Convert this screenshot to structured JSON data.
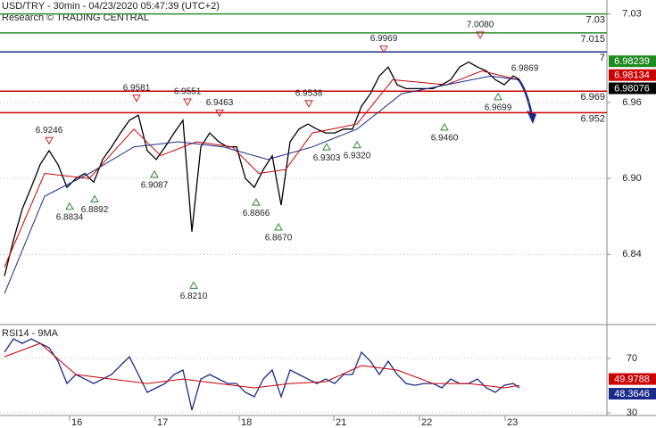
{
  "chart_data": [
    {
      "type": "line",
      "title": "USD/TRY - 30min - 04/23/2020 05:47:39 (UTC+2)",
      "subtitle": "Research © TRADING CENTRAL",
      "xlim": [
        0,
        340
      ],
      "ylim": [
        6.786,
        7.041
      ],
      "yticks": [
        6.84,
        {
          "value": 6.9,
          "label": "6.90"
        },
        6.96,
        7.03
      ],
      "grid": true,
      "series": [
        {
          "color": "#000000",
          "x": [
            2.5,
            7.5,
            12.5,
            17.5,
            22.5,
            27.5,
            32.5,
            37.5,
            42.5,
            47.5,
            52.5,
            57.5,
            62.5,
            67.5,
            72.5,
            77.5,
            82.5,
            87.5,
            92.5,
            97.5,
            102.5,
            107.5,
            112.5,
            117.5,
            122.5,
            127.5,
            132.5,
            137.5,
            142.5,
            147.5,
            152.5,
            157.5,
            162.5,
            167.5,
            172.5,
            177.5,
            182.5,
            187.5,
            192.5,
            197.5,
            202.5,
            207.5,
            212.5,
            217.5,
            222.5,
            227.5,
            232.5,
            237.5,
            242.5,
            247.5,
            252.5,
            257.5,
            262.5,
            267.5,
            272.5,
            277.5,
            282.5,
            287.5,
            291
          ],
          "values": [
            6.823,
            6.851,
            6.876,
            6.893,
            6.911,
            6.922,
            6.911,
            6.893,
            6.9,
            6.904,
            6.897,
            6.915,
            6.925,
            6.936,
            6.946,
            6.95,
            6.922,
            6.915,
            6.925,
            6.936,
            6.946,
            6.858,
            6.925,
            6.936,
            6.929,
            6.925,
            6.925,
            6.9,
            6.893,
            6.907,
            6.918,
            6.879,
            6.929,
            6.939,
            6.943,
            6.939,
            6.936,
            6.936,
            6.939,
            6.939,
            6.957,
            6.967,
            6.981,
            6.988,
            6.974,
            6.971,
            6.971,
            6.971,
            6.971,
            6.974,
            6.978,
            6.988,
            6.992,
            6.988,
            6.985,
            6.978,
            6.974,
            6.981,
            6.978
          ]
        },
        {
          "color": "#cc0000",
          "x": [
            2.5,
            25,
            50,
            75,
            90,
            110,
            130,
            145,
            160,
            175,
            200,
            220,
            250,
            270,
            290
          ],
          "values": [
            6.83,
            6.904,
            6.9,
            6.939,
            6.918,
            6.929,
            6.925,
            6.904,
            6.907,
            6.936,
            6.943,
            6.978,
            6.974,
            6.985,
            6.978
          ]
        },
        {
          "color": "#1a2a8a",
          "x": [
            2.5,
            25,
            50,
            75,
            100,
            125,
            150,
            175,
            200,
            225,
            250,
            275,
            290
          ],
          "values": [
            6.809,
            6.886,
            6.904,
            6.925,
            6.929,
            6.925,
            6.915,
            6.925,
            6.939,
            6.967,
            6.974,
            6.981,
            6.978
          ]
        }
      ],
      "levels": [
        {
          "value": 7.03,
          "color": "#2e8b2e"
        },
        {
          "value": 7.015,
          "color": "#2e8b2e"
        },
        {
          "value": 7,
          "color": "#1a2a8a"
        },
        {
          "value": 6.969,
          "color": "#cc0000"
        },
        {
          "value": 6.952,
          "color": "#cc0000"
        }
      ],
      "annotations": [
        {
          "x": 27.5,
          "value": 6.9246,
          "label": "6.9246",
          "marker": "high"
        },
        {
          "x": 39,
          "value": 6.8834,
          "label": "6.8834",
          "marker": "low"
        },
        {
          "x": 53,
          "value": 6.8892,
          "label": "6.8892",
          "marker": "low"
        },
        {
          "x": 76.5,
          "value": 6.9581,
          "label": "6.9581",
          "marker": "high"
        },
        {
          "x": 86.5,
          "value": 6.9087,
          "label": "6.9087",
          "marker": "low"
        },
        {
          "x": 105,
          "value": 6.9551,
          "label": "6.9551",
          "marker": "high"
        },
        {
          "x": 108.5,
          "value": 6.821,
          "label": "6.8210",
          "marker": "low"
        },
        {
          "x": 123,
          "value": 6.9463,
          "label": "6.9463",
          "marker": "high"
        },
        {
          "x": 143.5,
          "value": 6.8866,
          "label": "6.8866",
          "marker": "low"
        },
        {
          "x": 156,
          "value": 6.867,
          "label": "6.8670",
          "marker": "low"
        },
        {
          "x": 173,
          "value": 6.9538,
          "label": "6.9538",
          "marker": "high"
        },
        {
          "x": 183,
          "value": 6.9303,
          "label": "6.9303",
          "marker": "low"
        },
        {
          "x": 200,
          "value": 6.932,
          "label": "6.9320",
          "marker": "low"
        },
        {
          "x": 215,
          "value": 6.9969,
          "label": "6.9969",
          "marker": "high"
        },
        {
          "x": 249,
          "value": 6.946,
          "label": "6.9460",
          "marker": "low"
        },
        {
          "x": 269,
          "value": 7.008,
          "label": "7.0080",
          "marker": "high"
        },
        {
          "x": 279,
          "value": 6.9699,
          "label": "6.9699",
          "marker": "low"
        },
        {
          "x": 294,
          "value": 6.9869,
          "label": "6.9869",
          "marker": "text"
        }
      ],
      "price_tags": [
        {
          "value": 6.98239,
          "color": "#1f8a1f"
        },
        {
          "value": 6.98134,
          "color": "#cc0000"
        },
        {
          "value": 6.98076,
          "color": "#000000"
        }
      ]
    },
    {
      "type": "line",
      "title": "RSI14 - 9MA",
      "xlim": [
        0,
        340
      ],
      "ylim": [
        28.7,
        93
      ],
      "yticks": [
        30,
        70
      ],
      "grid": true,
      "xticks": [
        {
          "value": 39,
          "label": "16"
        },
        {
          "value": 87,
          "label": "17"
        },
        {
          "value": 134,
          "label": "18"
        },
        {
          "value": 187,
          "label": "21"
        },
        {
          "value": 235,
          "label": "22"
        },
        {
          "value": 283,
          "label": "23"
        }
      ],
      "series": [
        {
          "color": "#1a2a8a",
          "x": [
            2.5,
            7.5,
            12.5,
            17.5,
            22.5,
            27.5,
            32.5,
            37.5,
            42.5,
            47.5,
            52.5,
            57.5,
            62.5,
            67.5,
            72.5,
            77.5,
            82.5,
            87.5,
            92.5,
            97.5,
            102.5,
            107.5,
            112.5,
            117.5,
            122.5,
            127.5,
            132.5,
            137.5,
            142.5,
            147.5,
            152.5,
            157.5,
            162.5,
            167.5,
            172.5,
            177.5,
            182.5,
            187.5,
            192.5,
            197.5,
            202.5,
            207.5,
            212.5,
            217.5,
            222.5,
            227.5,
            232.5,
            237.5,
            242.5,
            247.5,
            252.5,
            257.5,
            262.5,
            267.5,
            272.5,
            277.5,
            282.5,
            287.5,
            291
          ],
          "values": [
            74.6,
            84.4,
            81.1,
            84.4,
            81.1,
            77.9,
            68,
            51.6,
            58.2,
            54.9,
            51.6,
            54.9,
            58.2,
            64.8,
            71.3,
            58.2,
            45.1,
            48.4,
            51.6,
            58.2,
            61.5,
            32,
            54.9,
            58.2,
            54.9,
            51.6,
            51.6,
            45.1,
            41.8,
            54.9,
            61.5,
            41.8,
            61.5,
            58.2,
            54.9,
            51.6,
            54.9,
            51.6,
            58.2,
            58.2,
            74.6,
            68,
            58.2,
            68,
            58.2,
            51.6,
            50.3,
            51.6,
            51.6,
            48.4,
            54.9,
            51.6,
            51.6,
            54.9,
            48.4,
            45.1,
            50.3,
            51.6,
            48.4
          ]
        },
        {
          "color": "#cc0000",
          "x": [
            2.5,
            22.5,
            42.5,
            62.5,
            82.5,
            102.5,
            122.5,
            142.5,
            162.5,
            182.5,
            202.5,
            222.5,
            242.5,
            262.5,
            282.5,
            291
          ],
          "values": [
            71.3,
            81.1,
            58.2,
            54.9,
            51.6,
            54.9,
            51.6,
            48.4,
            51.6,
            52.9,
            64.8,
            61.5,
            51.6,
            51.6,
            48.4,
            50.3
          ]
        }
      ],
      "price_tags": [
        {
          "value": 49.9788,
          "color": "#cc0000"
        },
        {
          "value": 48.3646,
          "color": "#1a2a8a"
        }
      ]
    }
  ]
}
